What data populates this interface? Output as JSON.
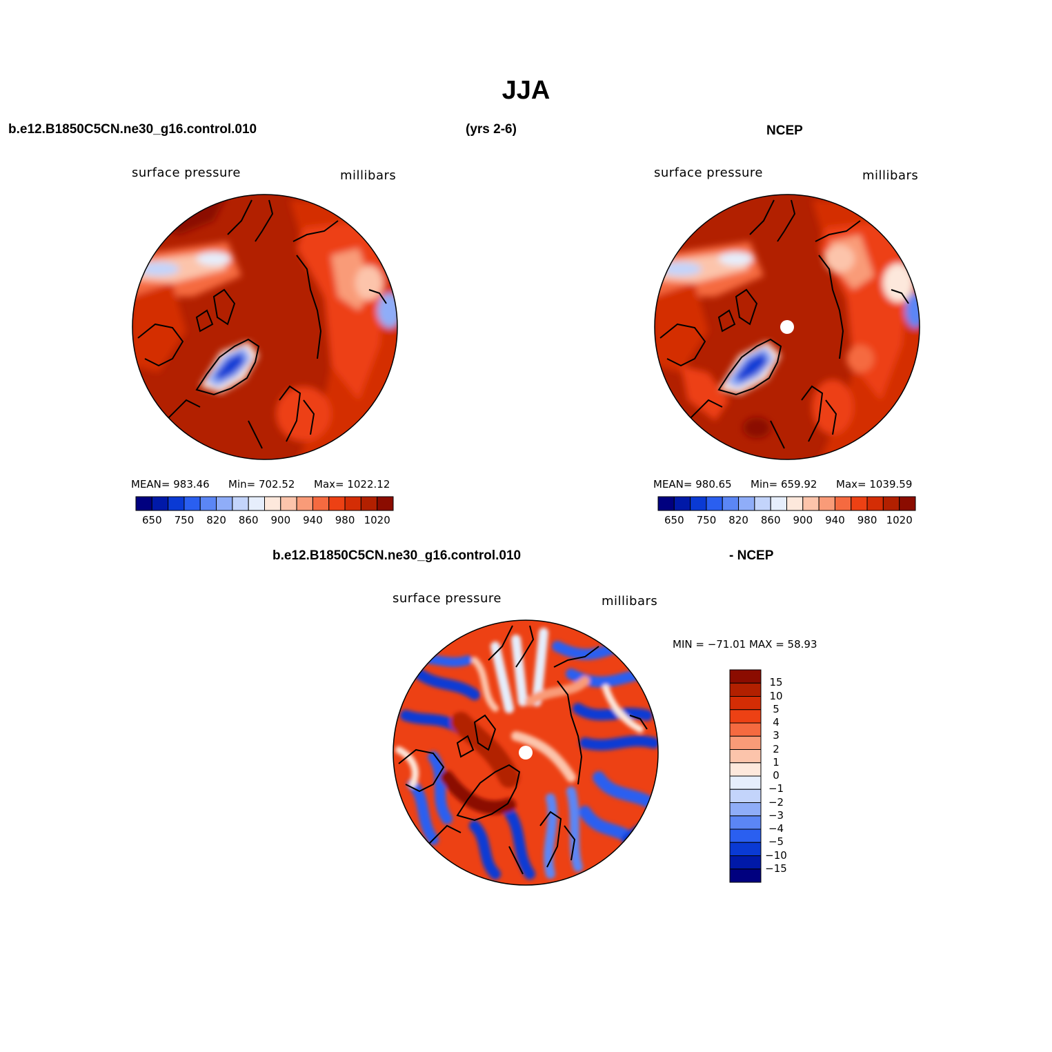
{
  "figure": {
    "title": "JJA",
    "header_case": "b.e12.B1850C5CN.ne30_g16.control.010",
    "header_years": "(yrs 2-6)",
    "header_obs": "NCEP",
    "diff_case": "b.e12.B1850C5CN.ne30_g16.control.010",
    "diff_obs": "- NCEP"
  },
  "panels": {
    "model": {
      "left_label": "surface pressure",
      "right_label": "millibars",
      "mean_text": "MEAN= 983.46",
      "min_text": "Min= 702.52",
      "max_text": "Max= 1022.12"
    },
    "obs": {
      "left_label": "surface pressure",
      "right_label": "millibars",
      "mean_text": "MEAN= 980.65",
      "min_text": "Min= 659.92",
      "max_text": "Max= 1039.59"
    },
    "diff": {
      "left_label": "surface pressure",
      "right_label": "millibars",
      "minmax_text": "MIN = −71.01 MAX =   58.93"
    }
  },
  "colorbar_abs": {
    "colors": [
      "#00007f",
      "#0019a8",
      "#0a3ad4",
      "#2a5ff0",
      "#5b86f5",
      "#8fadf8",
      "#c3d4fb",
      "#e6eefc",
      "#fde8dc",
      "#fcc4ab",
      "#f99b78",
      "#f56a40",
      "#ed4114",
      "#d42d05",
      "#b22000",
      "#8b0c00"
    ],
    "tick_labels": [
      "650",
      "750",
      "820",
      "860",
      "900",
      "940",
      "980",
      "1020"
    ]
  },
  "colorbar_diff": {
    "colors_top_to_bottom": [
      "#8b0c00",
      "#b22000",
      "#d42d05",
      "#ed4114",
      "#f56a40",
      "#f99b78",
      "#fcc4ab",
      "#fde8dc",
      "#e6eefc",
      "#c3d4fb",
      "#8fadf8",
      "#5b86f5",
      "#2a5ff0",
      "#0a3ad4",
      "#0019a8",
      "#00007f"
    ],
    "tick_labels": [
      "15",
      "10",
      "5",
      "4",
      "3",
      "2",
      "1",
      "0",
      "−1",
      "−2",
      "−3",
      "−4",
      "−5",
      "−10",
      "−15"
    ]
  }
}
